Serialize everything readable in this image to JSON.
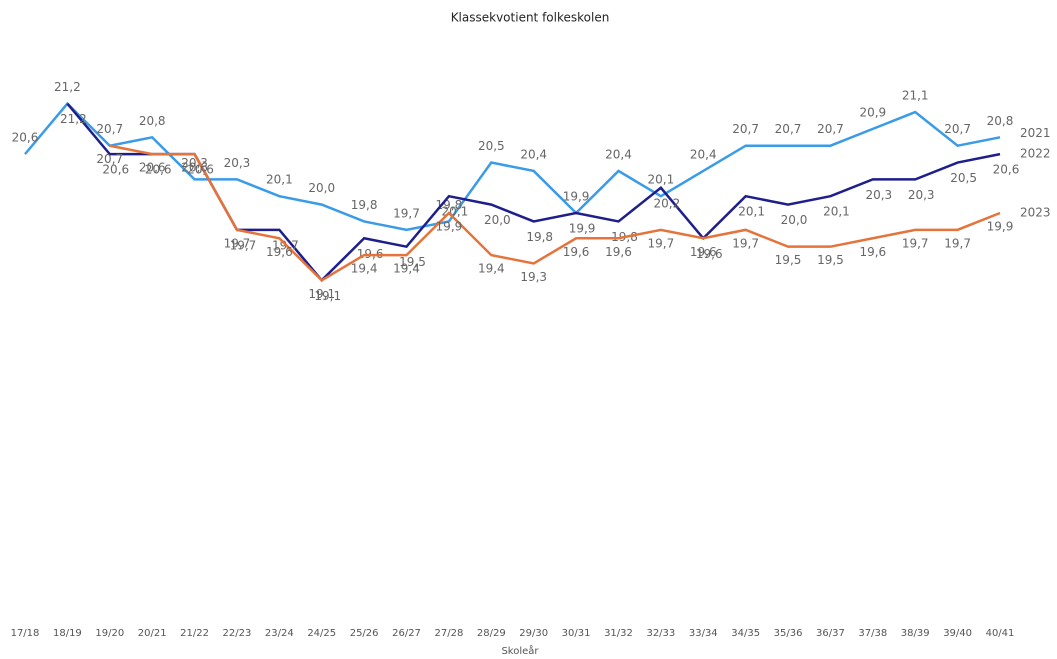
{
  "chart_data": {
    "type": "line",
    "title": "Klassekvotient folkeskolen",
    "x_label": "Skoleår",
    "categories": [
      "17/18",
      "18/19",
      "19/20",
      "20/21",
      "21/22",
      "22/23",
      "23/24",
      "24/25",
      "25/26",
      "26/27",
      "27/28",
      "28/29",
      "29/30",
      "30/31",
      "31/32",
      "32/33",
      "33/34",
      "34/35",
      "35/36",
      "36/37",
      "37/38",
      "38/39",
      "39/40",
      "40/41"
    ],
    "ylim": [
      15.3,
      21.6
    ],
    "series": [
      {
        "name": "2021",
        "color": "#3a9be8",
        "values": [
          20.6,
          21.2,
          20.7,
          20.8,
          20.3,
          20.3,
          20.1,
          20.0,
          19.8,
          19.7,
          19.8,
          20.5,
          20.4,
          19.9,
          20.4,
          20.1,
          20.4,
          20.7,
          20.7,
          20.7,
          20.9,
          21.1,
          20.7,
          20.8
        ],
        "value_labels": [
          "20,6",
          "21,2",
          "20,7",
          "20,8",
          "20,3",
          "20,3",
          "20,1",
          "20,0",
          "19,8",
          "19,7",
          "19,8",
          "20,5",
          "20,4",
          "19,9",
          "20,4",
          "20,1",
          "20,4",
          "20,7",
          "20,7",
          "20,7",
          "20,9",
          "21,1",
          "20,7",
          "20,8"
        ]
      },
      {
        "name": "2022",
        "color": "#1f1f8c",
        "values": [
          null,
          21.2,
          20.6,
          20.6,
          20.6,
          19.7,
          19.7,
          19.1,
          19.6,
          19.5,
          20.1,
          20.0,
          19.8,
          19.9,
          19.8,
          20.2,
          19.6,
          20.1,
          20.0,
          20.1,
          20.3,
          20.3,
          20.5,
          20.6
        ],
        "value_labels": [
          null,
          "21,2",
          "20,6",
          "20,6",
          "20,6",
          "19,7",
          "19,7",
          "19,1",
          "19,6",
          "19,5",
          "20,1",
          "20,0",
          "19,8",
          "19,9",
          "19,8",
          "20,2",
          "19,6",
          "20,1",
          "20,0",
          "20,1",
          "20,3",
          "20,3",
          "20,5",
          "20,6"
        ]
      },
      {
        "name": "2023",
        "color": "#e5733a",
        "values": [
          null,
          null,
          20.7,
          20.6,
          20.6,
          19.7,
          19.6,
          19.1,
          19.4,
          19.4,
          19.9,
          19.4,
          19.3,
          19.6,
          19.6,
          19.7,
          19.6,
          19.7,
          19.5,
          19.5,
          19.6,
          19.7,
          19.7,
          19.9
        ],
        "value_labels": [
          null,
          null,
          "20,7",
          "20,6",
          "20,6",
          "19,7",
          "19,6",
          "19,1",
          "19,4",
          "19,4",
          "19,9",
          "19,4",
          "19,3",
          "19,6",
          "19,6",
          "19,7",
          "19,6",
          "19,7",
          "19,5",
          "19,5",
          "19,6",
          "19,7",
          "19,7",
          "19,9"
        ]
      }
    ]
  }
}
